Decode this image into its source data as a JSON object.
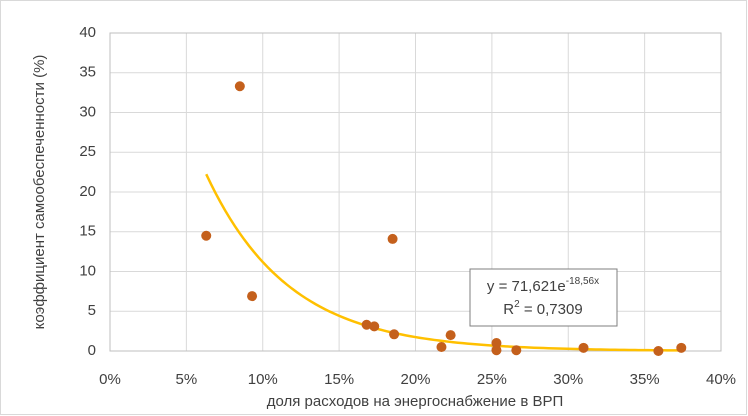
{
  "chart_data": {
    "type": "scatter",
    "x_label": "доля расходов на энергоснабжение в ВРП",
    "y_label": "коэффициент самообеспеченности (%)",
    "x": [
      0.063,
      0.085,
      0.093,
      0.168,
      0.173,
      0.185,
      0.186,
      0.217,
      0.223,
      0.253,
      0.253,
      0.266,
      0.31,
      0.359,
      0.374
    ],
    "series": [
      {
        "name": "коэффициент самообеспеченности (%)",
        "color": "#c4601c",
        "values": [
          14.5,
          33.3,
          6.9,
          3.3,
          3.1,
          14.1,
          2.1,
          0.5,
          2.0,
          1.0,
          0.1,
          0.1,
          0.4,
          0,
          0.4
        ]
      }
    ],
    "xlim": [
      0,
      0.4
    ],
    "xticks": [
      {
        "value": 0,
        "label": "0%"
      },
      {
        "value": 0.05,
        "label": "5%"
      },
      {
        "value": 0.1,
        "label": "10%"
      },
      {
        "value": 0.15,
        "label": "15%"
      },
      {
        "value": 0.2,
        "label": "20%"
      },
      {
        "value": 0.25,
        "label": "25%"
      },
      {
        "value": 0.3,
        "label": "30%"
      },
      {
        "value": 0.35,
        "label": "35%"
      },
      {
        "value": 0.4,
        "label": "40%"
      }
    ],
    "ylim": [
      0,
      40
    ],
    "yticks": [
      0,
      5,
      10,
      15,
      20,
      25,
      30,
      35,
      40
    ],
    "grid": true,
    "trendline": {
      "type": "exponential",
      "color": "#ffc000",
      "coefficient": 71.621,
      "rate": -18.56,
      "equation_text": [
        "y = 71,621e",
        "-18,56x"
      ],
      "r_squared_text": [
        "R",
        "2",
        " = 0,7309"
      ]
    }
  }
}
